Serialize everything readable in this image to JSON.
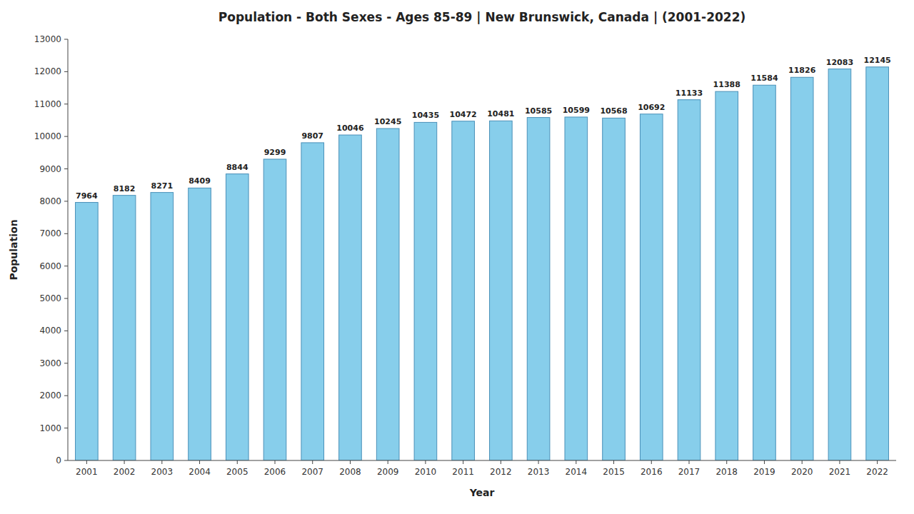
{
  "chart_data": {
    "type": "bar",
    "title": "Population - Both Sexes - Ages 85-89 | New Brunswick, Canada |  (2001-2022)",
    "xlabel": "Year",
    "ylabel": "Population",
    "categories": [
      "2001",
      "2002",
      "2003",
      "2004",
      "2005",
      "2006",
      "2007",
      "2008",
      "2009",
      "2010",
      "2011",
      "2012",
      "2013",
      "2014",
      "2015",
      "2016",
      "2017",
      "2018",
      "2019",
      "2020",
      "2021",
      "2022"
    ],
    "values": [
      7964,
      8182,
      8271,
      8409,
      8844,
      9299,
      9807,
      10046,
      10245,
      10435,
      10472,
      10481,
      10585,
      10599,
      10568,
      10692,
      11133,
      11388,
      11584,
      11826,
      12083,
      12145
    ],
    "color": "#87CEEB",
    "ylim": [
      0,
      13000
    ],
    "yticks": [
      0,
      1000,
      2000,
      3000,
      4000,
      5000,
      6000,
      7000,
      8000,
      9000,
      10000,
      11000,
      12000,
      13000
    ],
    "grid": false,
    "data_labels": true
  }
}
